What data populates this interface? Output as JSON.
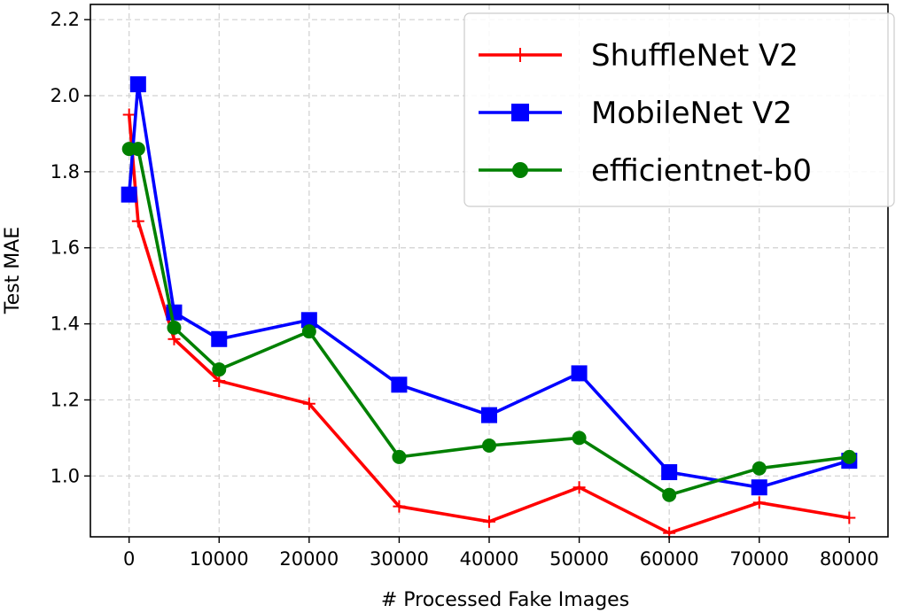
{
  "chart_data": {
    "type": "line",
    "xlabel": "# Processed Fake Images",
    "ylabel": "Test MAE",
    "xlim": [
      -4300,
      84300
    ],
    "ylim": [
      0.84,
      2.24
    ],
    "x_ticks": [
      0,
      10000,
      20000,
      30000,
      40000,
      50000,
      60000,
      70000,
      80000
    ],
    "y_ticks": [
      1.0,
      1.2,
      1.4,
      1.6,
      1.8,
      2.0,
      2.2
    ],
    "y_tick_labels": [
      "1.0",
      "1.2",
      "1.4",
      "1.6",
      "1.8",
      "2.0",
      "2.2"
    ],
    "grid": true,
    "legend_position": "top-right",
    "series": [
      {
        "name": "ShuffleNet V2",
        "color": "#ff0000",
        "marker": "plus",
        "x": [
          0,
          1000,
          5000,
          10000,
          20000,
          30000,
          40000,
          50000,
          60000,
          70000,
          80000
        ],
        "y": [
          1.95,
          1.67,
          1.36,
          1.25,
          1.19,
          0.92,
          0.88,
          0.97,
          0.85,
          0.93,
          0.89
        ]
      },
      {
        "name": "MobileNet V2",
        "color": "#0000ff",
        "marker": "square",
        "x": [
          0,
          1000,
          5000,
          10000,
          20000,
          30000,
          40000,
          50000,
          60000,
          70000,
          80000
        ],
        "y": [
          1.74,
          2.03,
          1.43,
          1.36,
          1.41,
          1.24,
          1.16,
          1.27,
          1.01,
          0.97,
          1.04
        ]
      },
      {
        "name": "efficientnet-b0",
        "color": "#008000",
        "marker": "circle",
        "x": [
          0,
          1000,
          5000,
          10000,
          20000,
          30000,
          40000,
          50000,
          60000,
          70000,
          80000
        ],
        "y": [
          1.86,
          1.86,
          1.39,
          1.28,
          1.38,
          1.05,
          1.08,
          1.1,
          0.95,
          1.02,
          1.05
        ]
      }
    ]
  }
}
